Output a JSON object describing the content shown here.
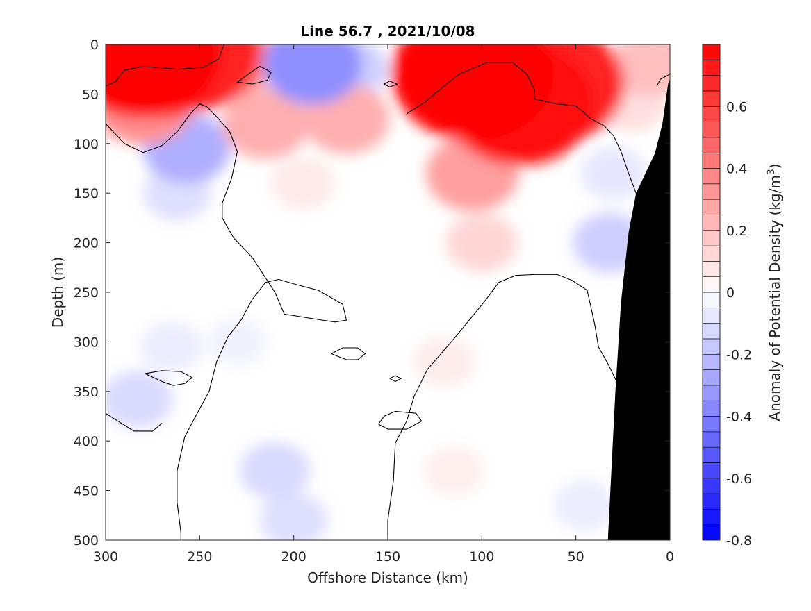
{
  "chart_data": {
    "type": "heatmap",
    "title": "Line 56.7 , 2021/10/08",
    "xlabel": "Offshore Distance (km)",
    "ylabel": "Depth (m)",
    "xlim": [
      300,
      0
    ],
    "ylim": [
      0,
      500
    ],
    "x_ticks": [
      "300",
      "250",
      "200",
      "150",
      "100",
      "50",
      "0"
    ],
    "x_tick_values": [
      300,
      250,
      200,
      150,
      100,
      50,
      0
    ],
    "y_ticks": [
      "0",
      "50",
      "100",
      "150",
      "200",
      "250",
      "300",
      "350",
      "400",
      "450",
      "500"
    ],
    "y_tick_values": [
      0,
      50,
      100,
      150,
      200,
      250,
      300,
      350,
      400,
      450,
      500
    ],
    "colorbar": {
      "label_prefix": "Anomaly of Potential Density (kg/m",
      "label_superscript": "3",
      "label_suffix": ")",
      "range": [
        -0.8,
        0.8
      ],
      "ticks": [
        "-0.8",
        "-0.6",
        "-0.4",
        "-0.2",
        "0",
        "0.2",
        "0.4",
        "0.6"
      ],
      "tick_values": [
        -0.8,
        -0.6,
        -0.4,
        -0.2,
        0,
        0.2,
        0.4,
        0.6
      ],
      "step": 0.05,
      "negative_color": "#0000ff",
      "zero_color": "#ffffff",
      "positive_color": "#ff0000"
    },
    "bathymetry_color": "#000000",
    "features": [
      {
        "x": 280,
        "depth": 10,
        "value": 0.8
      },
      {
        "x": 255,
        "depth": 8,
        "value": 0.7
      },
      {
        "x": 232,
        "depth": 12,
        "value": 0.3
      },
      {
        "x": 280,
        "depth": 60,
        "value": 0.35
      },
      {
        "x": 300,
        "depth": 70,
        "value": 0.1
      },
      {
        "x": 257,
        "depth": 105,
        "value": -0.25
      },
      {
        "x": 262,
        "depth": 150,
        "value": -0.1
      },
      {
        "x": 190,
        "depth": 20,
        "value": -0.35
      },
      {
        "x": 170,
        "depth": 25,
        "value": -0.15
      },
      {
        "x": 212,
        "depth": 25,
        "value": -0.05
      },
      {
        "x": 215,
        "depth": 80,
        "value": 0.25
      },
      {
        "x": 172,
        "depth": 75,
        "value": 0.25
      },
      {
        "x": 195,
        "depth": 140,
        "value": 0.07
      },
      {
        "x": 105,
        "depth": 30,
        "value": 0.85
      },
      {
        "x": 80,
        "depth": 60,
        "value": 0.75
      },
      {
        "x": 62,
        "depth": 40,
        "value": 0.7
      },
      {
        "x": 105,
        "depth": 130,
        "value": 0.3
      },
      {
        "x": 100,
        "depth": 200,
        "value": 0.13
      },
      {
        "x": 120,
        "depth": 320,
        "value": 0.06
      },
      {
        "x": 115,
        "depth": 430,
        "value": 0.05
      },
      {
        "x": 270,
        "depth": 20,
        "value": 0.6
      },
      {
        "x": 265,
        "depth": 305,
        "value": -0.06
      },
      {
        "x": 283,
        "depth": 358,
        "value": -0.12
      },
      {
        "x": 210,
        "depth": 430,
        "value": -0.12
      },
      {
        "x": 200,
        "depth": 480,
        "value": -0.1
      },
      {
        "x": 230,
        "depth": 300,
        "value": -0.04
      },
      {
        "x": 45,
        "depth": 465,
        "value": -0.06
      },
      {
        "x": 32,
        "depth": 200,
        "value": -0.15
      },
      {
        "x": 30,
        "depth": 130,
        "value": -0.08
      },
      {
        "x": 20,
        "depth": 60,
        "value": 0.1
      },
      {
        "x": 10,
        "depth": 20,
        "value": 0.2
      }
    ],
    "zero_contours": [
      [
        [
          300,
          42
        ],
        [
          295,
          38
        ],
        [
          290,
          26
        ],
        [
          280,
          22
        ],
        [
          262,
          25
        ],
        [
          248,
          23
        ],
        [
          240,
          15
        ],
        [
          237,
          0
        ]
      ],
      [
        [
          300,
          65
        ],
        [
          300,
          80
        ],
        [
          290,
          100
        ],
        [
          280,
          109
        ],
        [
          270,
          102
        ],
        [
          262,
          88
        ],
        [
          255,
          70
        ],
        [
          250,
          60
        ],
        [
          246,
          63
        ],
        [
          240,
          75
        ],
        [
          234,
          88
        ],
        [
          230,
          108
        ],
        [
          233,
          135
        ],
        [
          238,
          160
        ],
        [
          238,
          175
        ],
        [
          232,
          195
        ],
        [
          222,
          215
        ],
        [
          210,
          250
        ],
        [
          205,
          272
        ],
        [
          185,
          278
        ],
        [
          178,
          280
        ],
        [
          172,
          278
        ],
        [
          174,
          262
        ],
        [
          187,
          248
        ],
        [
          199,
          242
        ],
        [
          208,
          237
        ],
        [
          215,
          240
        ],
        [
          222,
          257
        ],
        [
          228,
          278
        ],
        [
          235,
          295
        ],
        [
          241,
          320
        ],
        [
          245,
          350
        ],
        [
          253,
          378
        ],
        [
          258,
          396
        ],
        [
          262,
          430
        ],
        [
          262,
          462
        ],
        [
          260,
          492
        ],
        [
          260,
          500
        ]
      ],
      [
        [
          150,
          500
        ],
        [
          150,
          480
        ],
        [
          147,
          440
        ],
        [
          146,
          402
        ],
        [
          140,
          380
        ],
        [
          136,
          355
        ],
        [
          129,
          328
        ],
        [
          114,
          295
        ],
        [
          98,
          258
        ],
        [
          91,
          240
        ],
        [
          82,
          233
        ],
        [
          72,
          232
        ],
        [
          60,
          232
        ],
        [
          52,
          238
        ],
        [
          44,
          248
        ],
        [
          42,
          265
        ],
        [
          40,
          282
        ],
        [
          38,
          305
        ],
        [
          33,
          322
        ],
        [
          27,
          345
        ],
        [
          22,
          372
        ],
        [
          18,
          395
        ],
        [
          12,
          412
        ],
        [
          8,
          430
        ],
        [
          6,
          460
        ],
        [
          8,
          500
        ]
      ],
      [
        [
          140,
          70
        ],
        [
          130,
          58
        ],
        [
          122,
          45
        ],
        [
          112,
          30
        ],
        [
          97,
          18
        ],
        [
          84,
          18
        ],
        [
          76,
          30
        ],
        [
          72,
          46
        ],
        [
          72,
          55
        ],
        [
          60,
          60
        ],
        [
          50,
          62
        ],
        [
          42,
          75
        ],
        [
          35,
          82
        ],
        [
          30,
          92
        ],
        [
          26,
          108
        ],
        [
          22,
          130
        ],
        [
          16,
          160
        ],
        [
          10,
          185
        ],
        [
          5,
          210
        ],
        [
          3,
          230
        ]
      ],
      [
        [
          222,
          27
        ],
        [
          230,
          38
        ],
        [
          222,
          40
        ],
        [
          214,
          36
        ],
        [
          212,
          28
        ],
        [
          218,
          22
        ],
        [
          222,
          27
        ]
      ],
      [
        [
          145,
          40
        ],
        [
          149,
          43
        ],
        [
          152,
          40
        ],
        [
          149,
          37
        ],
        [
          145,
          40
        ]
      ],
      [
        [
          279,
          332
        ],
        [
          270,
          340
        ],
        [
          264,
          344
        ],
        [
          258,
          342
        ],
        [
          254,
          336
        ],
        [
          260,
          330
        ],
        [
          270,
          329
        ],
        [
          279,
          332
        ]
      ],
      [
        [
          180,
          312
        ],
        [
          172,
          318
        ],
        [
          166,
          318
        ],
        [
          162,
          312
        ],
        [
          166,
          306
        ],
        [
          174,
          306
        ],
        [
          180,
          312
        ]
      ],
      [
        [
          149,
          337
        ],
        [
          146,
          340
        ],
        [
          143,
          337
        ],
        [
          146,
          334
        ],
        [
          149,
          337
        ]
      ],
      [
        [
          155,
          383
        ],
        [
          150,
          388
        ],
        [
          140,
          388
        ],
        [
          132,
          380
        ],
        [
          135,
          372
        ],
        [
          146,
          370
        ],
        [
          152,
          375
        ],
        [
          155,
          383
        ]
      ],
      [
        [
          7,
          42
        ],
        [
          5,
          35
        ],
        [
          0,
          30
        ]
      ],
      [
        [
          300,
          372
        ],
        [
          295,
          378
        ],
        [
          285,
          390
        ],
        [
          275,
          390
        ],
        [
          270,
          382
        ]
      ]
    ],
    "bathymetry": [
      [
        33,
        500
      ],
      [
        29,
        350
      ],
      [
        26,
        260
      ],
      [
        22,
        190
      ],
      [
        18,
        150
      ],
      [
        13,
        130
      ],
      [
        8,
        110
      ],
      [
        4,
        80
      ],
      [
        1,
        40
      ],
      [
        0,
        35
      ],
      [
        0,
        500
      ]
    ]
  }
}
